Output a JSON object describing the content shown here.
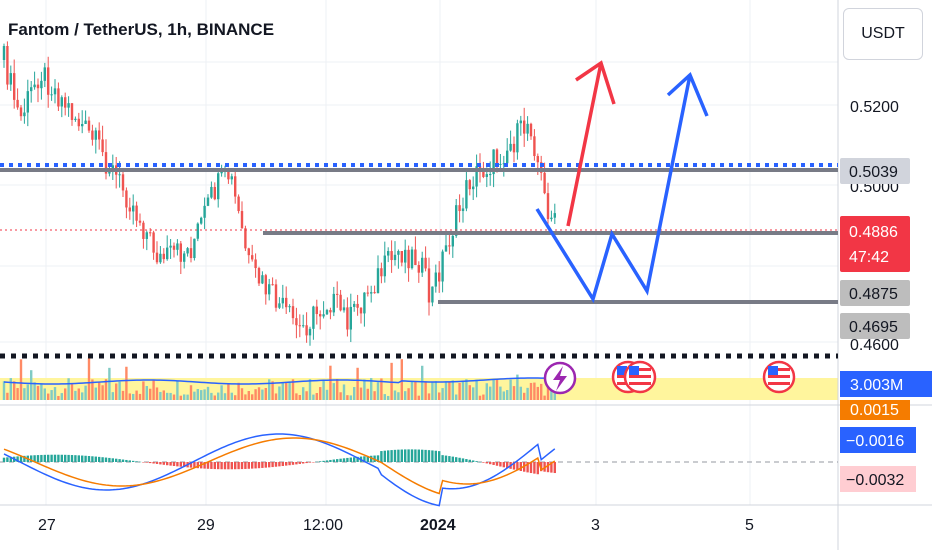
{
  "header": {
    "title": "Fantom / TetherUS, 1h, BINANCE",
    "currency_button": "USDT"
  },
  "chart_data": {
    "type": "candlestick",
    "title": "Fantom / TetherUS, 1h, BINANCE",
    "x_ticks": [
      "27",
      "29",
      "12:00",
      "2024",
      "3",
      "5"
    ],
    "price_axis_ticks": [
      "0.5200",
      "0.5039",
      "0.5000",
      "0.4886",
      "47:42",
      "0.4875",
      "0.4695",
      "0.4600"
    ],
    "price_labels": [
      {
        "name": "resistance",
        "value": "0.5039",
        "color": "#787b86"
      },
      {
        "name": "last-price",
        "value": "0.4886",
        "sub": "47:42",
        "color": "#f23645"
      },
      {
        "name": "support-1",
        "value": "0.4875",
        "color": "#787b86"
      },
      {
        "name": "support-2",
        "value": "0.4695",
        "color": "#787b86"
      }
    ],
    "horizontal_levels": [
      {
        "name": "dotted-resistance",
        "value": 0.5039,
        "style": "dotted",
        "color": "#2962ff"
      },
      {
        "name": "solid-resistance",
        "value": 0.5039,
        "style": "solid",
        "color": "#787b86"
      },
      {
        "name": "level-0.4886",
        "value": 0.4886,
        "style": "solid",
        "color": "#787b86"
      },
      {
        "name": "level-0.4875",
        "value": 0.4875,
        "style": "solid",
        "color": "#787b86"
      },
      {
        "name": "dotted-support",
        "value": 0.46,
        "style": "dotted",
        "color": "#131722"
      }
    ],
    "volume": {
      "value": "3.003M"
    },
    "macd": {
      "labels": [
        "0.0015",
        "−0.0016",
        "−0.0032"
      ]
    },
    "colors": {
      "up": "#26a69a",
      "down": "#ef5350",
      "macd_line": "#2962ff",
      "signal_line": "#f57c00",
      "projection_blue": "#2962ff",
      "projection_red": "#f23645",
      "volume_band": "#fff59d"
    }
  }
}
